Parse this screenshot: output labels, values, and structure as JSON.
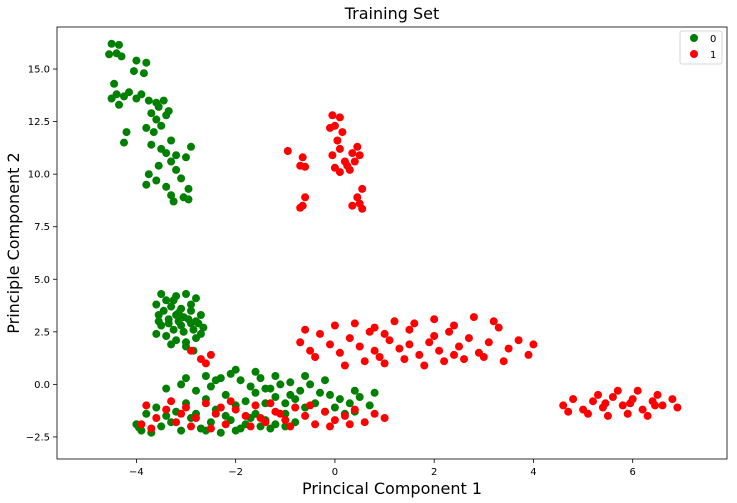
{
  "chart_data": {
    "type": "scatter",
    "title": "Training Set",
    "xlabel": "Princical Component 1",
    "ylabel": "Principle Component 2",
    "xlim": [
      -5.6,
      7.9
    ],
    "ylim": [
      -3.55,
      17.0
    ],
    "xticks": [
      -4,
      -2,
      0,
      2,
      4,
      6
    ],
    "yticks": [
      -2.5,
      0.0,
      2.5,
      5.0,
      7.5,
      10.0,
      12.5,
      15.0
    ],
    "xtick_labels": [
      "−4",
      "−2",
      "0",
      "2",
      "4",
      "6"
    ],
    "ytick_labels": [
      "−2.5",
      "0.0",
      "2.5",
      "5.0",
      "7.5",
      "10.0",
      "12.5",
      "15.0"
    ],
    "grid": false,
    "legend_position": "top-right",
    "series": [
      {
        "name": "0",
        "color": "#008000",
        "points": [
          [
            -4.5,
            16.2
          ],
          [
            -4.35,
            16.15
          ],
          [
            -4.55,
            15.7
          ],
          [
            -4.4,
            15.75
          ],
          [
            -4.3,
            15.6
          ],
          [
            -4.0,
            15.4
          ],
          [
            -3.8,
            15.3
          ],
          [
            -4.05,
            14.9
          ],
          [
            -3.85,
            14.8
          ],
          [
            -4.45,
            14.3
          ],
          [
            -4.4,
            13.8
          ],
          [
            -4.25,
            13.7
          ],
          [
            -4.15,
            13.9
          ],
          [
            -4.0,
            13.6
          ],
          [
            -3.9,
            13.8
          ],
          [
            -3.75,
            13.5
          ],
          [
            -3.6,
            13.4
          ],
          [
            -3.55,
            13.2
          ],
          [
            -3.45,
            13.5
          ],
          [
            -3.35,
            13.0
          ],
          [
            -4.5,
            13.6
          ],
          [
            -4.35,
            13.3
          ],
          [
            -3.7,
            12.9
          ],
          [
            -3.6,
            12.6
          ],
          [
            -3.5,
            12.3
          ],
          [
            -3.4,
            12.8
          ],
          [
            -3.8,
            12.2
          ],
          [
            -4.2,
            12.0
          ],
          [
            -3.65,
            12.0
          ],
          [
            -3.3,
            11.6
          ],
          [
            -3.5,
            11.2
          ],
          [
            -3.4,
            11.0
          ],
          [
            -3.2,
            10.9
          ],
          [
            -3.0,
            10.8
          ],
          [
            -2.9,
            11.3
          ],
          [
            -3.3,
            10.6
          ],
          [
            -3.7,
            11.4
          ],
          [
            -3.55,
            10.4
          ],
          [
            -4.25,
            11.5
          ],
          [
            -3.2,
            10.2
          ],
          [
            -3.1,
            9.8
          ],
          [
            -2.95,
            9.3
          ],
          [
            -3.3,
            9.0
          ],
          [
            -3.05,
            8.9
          ],
          [
            -3.8,
            9.5
          ],
          [
            -3.6,
            9.7
          ],
          [
            -3.75,
            10.0
          ],
          [
            -3.4,
            9.4
          ],
          [
            -3.25,
            8.7
          ],
          [
            -2.95,
            8.8
          ],
          [
            -3.5,
            4.3
          ],
          [
            -3.4,
            4.0
          ],
          [
            -3.2,
            4.2
          ],
          [
            -3.0,
            4.3
          ],
          [
            -2.8,
            4.1
          ],
          [
            -3.6,
            3.8
          ],
          [
            -3.3,
            3.7
          ],
          [
            -3.1,
            3.6
          ],
          [
            -2.9,
            3.5
          ],
          [
            -2.7,
            3.3
          ],
          [
            -3.55,
            3.3
          ],
          [
            -3.35,
            3.1
          ],
          [
            -3.15,
            3.0
          ],
          [
            -2.95,
            3.1
          ],
          [
            -2.75,
            2.9
          ],
          [
            -3.5,
            2.8
          ],
          [
            -3.25,
            2.6
          ],
          [
            -3.05,
            2.5
          ],
          [
            -2.85,
            2.6
          ],
          [
            -2.65,
            2.7
          ],
          [
            -3.4,
            2.3
          ],
          [
            -3.2,
            2.1
          ],
          [
            -3.0,
            2.0
          ],
          [
            -2.8,
            2.2
          ],
          [
            -3.6,
            2.4
          ],
          [
            -3.0,
            1.8
          ],
          [
            -2.85,
            1.6
          ],
          [
            -3.3,
            1.9
          ],
          [
            -3.45,
            3.5
          ],
          [
            -3.15,
            3.4
          ],
          [
            -2.9,
            3.8
          ],
          [
            -3.25,
            4.0
          ],
          [
            -3.55,
            3.0
          ],
          [
            -2.7,
            2.4
          ],
          [
            -3.1,
            2.8
          ],
          [
            -2.9,
            2.9
          ],
          [
            -3.35,
            2.9
          ],
          [
            -3.05,
            3.2
          ],
          [
            -2.8,
            3.0
          ],
          [
            -3.2,
            3.3
          ],
          [
            -4.0,
            -1.9
          ],
          [
            -3.9,
            -2.2
          ],
          [
            -3.7,
            -2.3
          ],
          [
            -3.5,
            -2.0
          ],
          [
            -3.3,
            -1.8
          ],
          [
            -3.1,
            -2.2
          ],
          [
            -2.9,
            -1.6
          ],
          [
            -2.7,
            -2.1
          ],
          [
            -2.5,
            -1.8
          ],
          [
            -2.3,
            -2.3
          ],
          [
            -2.1,
            -1.7
          ],
          [
            -1.9,
            -2.1
          ],
          [
            -1.7,
            -1.6
          ],
          [
            -1.5,
            -2.0
          ],
          [
            -1.3,
            -2.1
          ],
          [
            -3.4,
            -0.2
          ],
          [
            -3.1,
            0.0
          ],
          [
            -2.8,
            -0.3
          ],
          [
            -2.5,
            -0.1
          ],
          [
            -2.3,
            0.3
          ],
          [
            -2.1,
            0.5
          ],
          [
            -1.9,
            0.2
          ],
          [
            -1.7,
            -0.1
          ],
          [
            -1.5,
            0.3
          ],
          [
            -1.3,
            -0.2
          ],
          [
            -1.1,
            0.0
          ],
          [
            -0.9,
            0.1
          ],
          [
            -0.7,
            -0.3
          ],
          [
            -0.5,
            0.0
          ],
          [
            -0.3,
            -0.4
          ],
          [
            -0.1,
            -0.5
          ],
          [
            0.1,
            -0.7
          ],
          [
            0.3,
            -0.9
          ],
          [
            0.5,
            -0.6
          ],
          [
            0.7,
            -1.0
          ],
          [
            0.8,
            -0.4
          ],
          [
            -2.0,
            0.7
          ],
          [
            -2.2,
            -0.5
          ],
          [
            -1.8,
            -0.8
          ],
          [
            -1.6,
            -0.4
          ],
          [
            -1.4,
            -0.9
          ],
          [
            -1.2,
            -0.6
          ],
          [
            -1.0,
            -0.9
          ],
          [
            -0.8,
            -0.7
          ],
          [
            -0.6,
            -1.1
          ],
          [
            -0.4,
            -0.9
          ],
          [
            -0.2,
            -1.3
          ],
          [
            0.0,
            -1.1
          ],
          [
            0.2,
            -1.4
          ],
          [
            0.4,
            -1.3
          ],
          [
            -3.6,
            -1.1
          ],
          [
            -3.4,
            -1.5
          ],
          [
            -3.2,
            -1.3
          ],
          [
            -3.0,
            -0.9
          ],
          [
            -2.8,
            -1.4
          ],
          [
            -2.6,
            -0.7
          ],
          [
            -2.4,
            -1.2
          ],
          [
            -2.2,
            -1.5
          ],
          [
            -2.0,
            -1.0
          ],
          [
            -1.8,
            -1.9
          ],
          [
            -1.6,
            -1.4
          ],
          [
            -1.4,
            -1.7
          ],
          [
            -1.2,
            -1.9
          ],
          [
            -1.0,
            -1.4
          ],
          [
            -0.8,
            -1.8
          ],
          [
            -3.8,
            -1.4
          ],
          [
            -3.95,
            -2.05
          ],
          [
            -2.6,
            -2.2
          ],
          [
            -2.0,
            -2.2
          ],
          [
            -1.0,
            -2.0
          ],
          [
            -3.0,
            0.3
          ],
          [
            -2.6,
            0.4
          ],
          [
            -1.6,
            0.6
          ],
          [
            -0.6,
            0.4
          ],
          [
            -0.2,
            0.2
          ],
          [
            0.4,
            -0.3
          ],
          [
            -1.2,
            0.4
          ],
          [
            -2.4,
            0.2
          ],
          [
            -1.4,
            -0.2
          ],
          [
            -0.9,
            -0.5
          ]
        ]
      },
      {
        "name": "1",
        "color": "#ff0000",
        "points": [
          [
            -0.95,
            11.1
          ],
          [
            -0.65,
            10.8
          ],
          [
            -0.7,
            10.4
          ],
          [
            -0.6,
            10.35
          ],
          [
            -0.65,
            8.5
          ],
          [
            -0.6,
            8.9
          ],
          [
            -0.7,
            8.4
          ],
          [
            -0.05,
            12.8
          ],
          [
            0.1,
            12.7
          ],
          [
            0.0,
            12.3
          ],
          [
            -0.1,
            12.2
          ],
          [
            0.15,
            12.0
          ],
          [
            0.05,
            11.6
          ],
          [
            0.1,
            11.2
          ],
          [
            -0.05,
            10.9
          ],
          [
            0.2,
            10.6
          ],
          [
            0.0,
            10.3
          ],
          [
            0.1,
            10.1
          ],
          [
            0.3,
            10.2
          ],
          [
            0.35,
            11.0
          ],
          [
            0.45,
            11.3
          ],
          [
            0.5,
            10.9
          ],
          [
            0.4,
            10.6
          ],
          [
            0.55,
            9.3
          ],
          [
            0.45,
            8.9
          ],
          [
            0.5,
            8.6
          ],
          [
            0.35,
            8.5
          ],
          [
            0.55,
            8.35
          ],
          [
            0.25,
            10.4
          ],
          [
            -0.7,
            2.0
          ],
          [
            -0.5,
            1.6
          ],
          [
            -0.3,
            2.4
          ],
          [
            -0.1,
            1.9
          ],
          [
            0.1,
            1.5
          ],
          [
            0.3,
            2.2
          ],
          [
            0.5,
            1.8
          ],
          [
            0.7,
            2.5
          ],
          [
            0.9,
            1.3
          ],
          [
            1.1,
            2.1
          ],
          [
            1.3,
            1.7
          ],
          [
            1.5,
            2.6
          ],
          [
            1.7,
            1.4
          ],
          [
            1.9,
            2.0
          ],
          [
            2.1,
            1.6
          ],
          [
            2.3,
            2.5
          ],
          [
            2.5,
            1.8
          ],
          [
            2.7,
            2.2
          ],
          [
            2.9,
            1.5
          ],
          [
            3.1,
            2.0
          ],
          [
            3.3,
            2.7
          ],
          [
            3.5,
            1.7
          ],
          [
            3.7,
            2.1
          ],
          [
            3.9,
            1.4
          ],
          [
            4.0,
            1.9
          ],
          [
            0.0,
            2.8
          ],
          [
            0.4,
            2.9
          ],
          [
            0.8,
            2.7
          ],
          [
            1.2,
            3.0
          ],
          [
            1.6,
            2.9
          ],
          [
            2.0,
            3.1
          ],
          [
            2.4,
            2.8
          ],
          [
            2.8,
            3.2
          ],
          [
            3.2,
            3.0
          ],
          [
            1.0,
            1.0
          ],
          [
            1.4,
            1.2
          ],
          [
            1.8,
            0.9
          ],
          [
            2.2,
            1.1
          ],
          [
            2.6,
            1.2
          ],
          [
            0.6,
            1.1
          ],
          [
            -0.4,
            1.3
          ],
          [
            0.2,
            0.9
          ],
          [
            3.0,
            1.3
          ],
          [
            3.4,
            1.1
          ],
          [
            -0.6,
            2.6
          ],
          [
            2.0,
            2.3
          ],
          [
            1.5,
            1.9
          ],
          [
            1.0,
            2.4
          ],
          [
            2.4,
            1.4
          ],
          [
            0.8,
            1.6
          ],
          [
            -3.8,
            -1.0
          ],
          [
            -3.6,
            -1.6
          ],
          [
            -3.4,
            -1.2
          ],
          [
            -3.2,
            -1.8
          ],
          [
            -3.0,
            -1.1
          ],
          [
            -2.8,
            -1.6
          ],
          [
            -2.6,
            -0.9
          ],
          [
            -2.4,
            -1.4
          ],
          [
            -2.2,
            -1.9
          ],
          [
            -2.0,
            -1.2
          ],
          [
            -1.8,
            -1.5
          ],
          [
            -1.6,
            -1.0
          ],
          [
            -1.4,
            -1.8
          ],
          [
            -1.2,
            -1.3
          ],
          [
            -1.0,
            -1.7
          ],
          [
            -0.8,
            -1.1
          ],
          [
            -0.6,
            -1.5
          ],
          [
            -0.4,
            -1.9
          ],
          [
            -0.2,
            -1.3
          ],
          [
            0.0,
            -1.7
          ],
          [
            0.2,
            -1.5
          ],
          [
            0.4,
            -1.2
          ],
          [
            0.6,
            -1.8
          ],
          [
            0.8,
            -1.4
          ],
          [
            1.0,
            -1.6
          ],
          [
            -3.9,
            -1.9
          ],
          [
            -3.7,
            -2.1
          ],
          [
            -3.3,
            -0.8
          ],
          [
            -2.9,
            -2.0
          ],
          [
            -2.5,
            -2.1
          ],
          [
            -2.1,
            -0.8
          ],
          [
            -1.7,
            -2.0
          ],
          [
            -1.3,
            -0.9
          ],
          [
            -0.9,
            -2.0
          ],
          [
            -0.5,
            -1.0
          ],
          [
            -0.1,
            -2.0
          ],
          [
            0.3,
            -1.9
          ],
          [
            -2.7,
            1.2
          ],
          [
            -2.5,
            1.4
          ],
          [
            -2.6,
            1.0
          ],
          [
            -2.9,
            1.6
          ],
          [
            -1.5,
            -1.6
          ],
          [
            -3.1,
            -1.4
          ],
          [
            -2.3,
            -1.1
          ],
          [
            -1.1,
            -1.4
          ],
          [
            4.6,
            -1.0
          ],
          [
            4.8,
            -0.7
          ],
          [
            5.0,
            -1.2
          ],
          [
            5.2,
            -0.8
          ],
          [
            5.4,
            -1.1
          ],
          [
            5.6,
            -0.6
          ],
          [
            5.8,
            -1.0
          ],
          [
            6.0,
            -0.7
          ],
          [
            6.2,
            -1.2
          ],
          [
            6.4,
            -0.8
          ],
          [
            6.6,
            -1.0
          ],
          [
            6.8,
            -0.7
          ],
          [
            6.9,
            -1.1
          ],
          [
            5.1,
            -1.4
          ],
          [
            5.5,
            -1.5
          ],
          [
            5.9,
            -1.4
          ],
          [
            6.3,
            -1.5
          ],
          [
            5.3,
            -0.5
          ],
          [
            5.7,
            -0.3
          ],
          [
            6.1,
            -0.3
          ],
          [
            6.5,
            -0.5
          ],
          [
            4.7,
            -1.3
          ],
          [
            5.95,
            -0.9
          ],
          [
            5.45,
            -0.9
          ],
          [
            6.45,
            -1.0
          ]
        ]
      }
    ]
  }
}
